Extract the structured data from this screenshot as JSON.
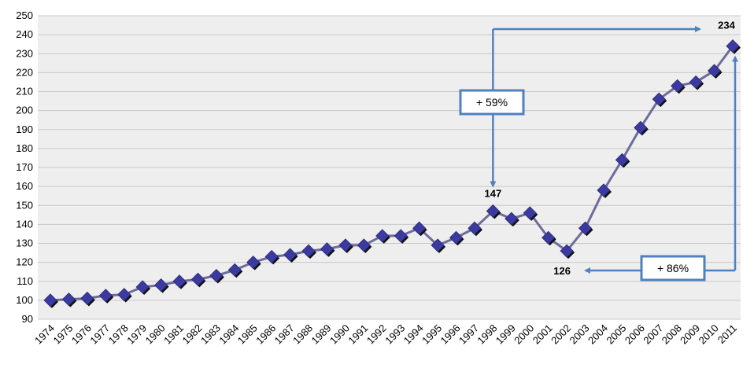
{
  "chart_data": {
    "type": "line",
    "title": "",
    "xlabel": "",
    "ylabel": "",
    "ylim": [
      90,
      250
    ],
    "y_ticks": [
      "90",
      "100",
      "110",
      "120",
      "130",
      "140",
      "150",
      "160",
      "170",
      "180",
      "190",
      "200",
      "210",
      "220",
      "230",
      "240",
      "250"
    ],
    "grid": "horizontal",
    "categories": [
      "1974",
      "1975",
      "1976",
      "1977",
      "1978",
      "1979",
      "1980",
      "1981",
      "1982",
      "1983",
      "1984",
      "1985",
      "1986",
      "1987",
      "1988",
      "1989",
      "1990",
      "1991",
      "1992",
      "1993",
      "1994",
      "1995",
      "1996",
      "1997",
      "1998",
      "1999",
      "2000",
      "2001",
      "2002",
      "2003",
      "2004",
      "2005",
      "2006",
      "2007",
      "2008",
      "2009",
      "2010",
      "2011"
    ],
    "series": [
      {
        "color": "#4b4aa0",
        "values": [
          100,
          100.5,
          101,
          102.5,
          103,
          107,
          108,
          110,
          111,
          113,
          116,
          120,
          123,
          124,
          126,
          127,
          129,
          129,
          134,
          134,
          138,
          129,
          133,
          138,
          147,
          143,
          146,
          133,
          126,
          138,
          158,
          174,
          191,
          206,
          213,
          215,
          221,
          234
        ]
      }
    ],
    "data_labels": [
      {
        "category": "1998",
        "text": "147"
      },
      {
        "category": "2002",
        "text": "126"
      },
      {
        "category": "2011",
        "text": "234"
      }
    ],
    "annotations": [
      {
        "text": "+ 59%",
        "from": "1998",
        "to": "2011"
      },
      {
        "text": "+ 86%",
        "from": "2002",
        "to": "2011"
      }
    ],
    "colors": {
      "plot_background": "#eeeeee",
      "gridline": "#c8c8c8",
      "line": "#6e6c9a",
      "marker": "#3b3aa0",
      "marker_shadow": "#111111",
      "annotation": "#4f81bd"
    }
  }
}
